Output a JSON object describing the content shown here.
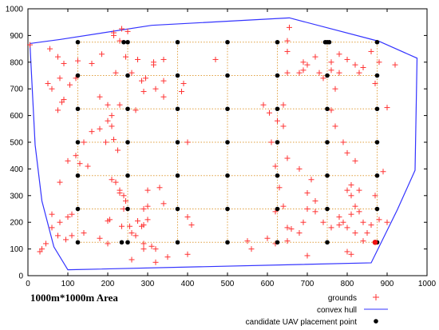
{
  "chart_data": {
    "type": "scatter",
    "xlabel": "1000m*1000m Area",
    "ylabel": "",
    "xlim": [
      0,
      1000
    ],
    "ylim": [
      0,
      1000
    ],
    "xticks": [
      "0",
      "100",
      "200",
      "300",
      "400",
      "500",
      "600",
      "700",
      "800",
      "900",
      "1000"
    ],
    "yticks": [
      "0",
      "100",
      "200",
      "300",
      "400",
      "500",
      "600",
      "700",
      "800",
      "900",
      "1000"
    ],
    "grid": false,
    "legend_position": "bottom-right",
    "colors": {
      "grounds": "#ff3333",
      "hull": "#3333ff",
      "candidates": "#000000",
      "highlight": "#ee1111",
      "grid_lines": "#e0a040"
    },
    "series": [
      {
        "name": "grounds",
        "marker": "plus",
        "points": [
          [
            5,
            865
          ],
          [
            55,
            850
          ],
          [
            75,
            820
          ],
          [
            80,
            740
          ],
          [
            50,
            720
          ],
          [
            90,
            795
          ],
          [
            60,
            700
          ],
          [
            90,
            660
          ],
          [
            85,
            650
          ],
          [
            75,
            620
          ],
          [
            120,
            740
          ],
          [
            105,
            715
          ],
          [
            125,
            805
          ],
          [
            160,
            795
          ],
          [
            185,
            830
          ],
          [
            215,
            900
          ],
          [
            215,
            910
          ],
          [
            235,
            925
          ],
          [
            250,
            915
          ],
          [
            230,
            880
          ],
          [
            245,
            820
          ],
          [
            275,
            810
          ],
          [
            260,
            760
          ],
          [
            220,
            760
          ],
          [
            285,
            730
          ],
          [
            295,
            740
          ],
          [
            315,
            800
          ],
          [
            315,
            790
          ],
          [
            340,
            810
          ],
          [
            340,
            730
          ],
          [
            340,
            670
          ],
          [
            320,
            700
          ],
          [
            290,
            690
          ],
          [
            270,
            620
          ],
          [
            230,
            640
          ],
          [
            180,
            670
          ],
          [
            200,
            640
          ],
          [
            180,
            550
          ],
          [
            210,
            600
          ],
          [
            200,
            580
          ],
          [
            160,
            540
          ],
          [
            140,
            500
          ],
          [
            120,
            450
          ],
          [
            100,
            430
          ],
          [
            130,
            420
          ],
          [
            150,
            410
          ],
          [
            210,
            560
          ],
          [
            215,
            510
          ],
          [
            195,
            500
          ],
          [
            225,
            470
          ],
          [
            210,
            360
          ],
          [
            220,
            350
          ],
          [
            230,
            310
          ],
          [
            240,
            300
          ],
          [
            230,
            320
          ],
          [
            245,
            280
          ],
          [
            240,
            250
          ],
          [
            205,
            210
          ],
          [
            200,
            205
          ],
          [
            235,
            185
          ],
          [
            255,
            185
          ],
          [
            275,
            205
          ],
          [
            300,
            210
          ],
          [
            290,
            190
          ],
          [
            285,
            185
          ],
          [
            260,
            160
          ],
          [
            270,
            150
          ],
          [
            290,
            120
          ],
          [
            290,
            100
          ],
          [
            310,
            110
          ],
          [
            320,
            100
          ],
          [
            290,
            250
          ],
          [
            300,
            260
          ],
          [
            300,
            320
          ],
          [
            330,
            330
          ],
          [
            340,
            270
          ],
          [
            400,
            220
          ],
          [
            410,
            190
          ],
          [
            400,
            500
          ],
          [
            390,
            720
          ],
          [
            385,
            690
          ],
          [
            470,
            810
          ],
          [
            590,
            640
          ],
          [
            605,
            610
          ],
          [
            610,
            500
          ],
          [
            625,
            580
          ],
          [
            640,
            560
          ],
          [
            650,
            440
          ],
          [
            620,
            410
          ],
          [
            630,
            330
          ],
          [
            640,
            260
          ],
          [
            620,
            240
          ],
          [
            650,
            180
          ],
          [
            660,
            175
          ],
          [
            680,
            160
          ],
          [
            690,
            200
          ],
          [
            700,
            250
          ],
          [
            720,
            280
          ],
          [
            710,
            360
          ],
          [
            700,
            310
          ],
          [
            680,
            400
          ],
          [
            640,
            640
          ],
          [
            650,
            760
          ],
          [
            650,
            840
          ],
          [
            650,
            880
          ],
          [
            655,
            930
          ],
          [
            680,
            760
          ],
          [
            690,
            770
          ],
          [
            700,
            790
          ],
          [
            690,
            800
          ],
          [
            720,
            820
          ],
          [
            730,
            760
          ],
          [
            740,
            740
          ],
          [
            760,
            800
          ],
          [
            760,
            770
          ],
          [
            780,
            760
          ],
          [
            770,
            700
          ],
          [
            760,
            620
          ],
          [
            770,
            560
          ],
          [
            790,
            500
          ],
          [
            800,
            460
          ],
          [
            820,
            430
          ],
          [
            810,
            340
          ],
          [
            800,
            320
          ],
          [
            810,
            300
          ],
          [
            830,
            320
          ],
          [
            820,
            260
          ],
          [
            830,
            240
          ],
          [
            810,
            230
          ],
          [
            780,
            220
          ],
          [
            790,
            200
          ],
          [
            800,
            180
          ],
          [
            840,
            200
          ],
          [
            820,
            160
          ],
          [
            860,
            190
          ],
          [
            850,
            160
          ],
          [
            840,
            130
          ],
          [
            800,
            90
          ],
          [
            810,
            80
          ],
          [
            700,
            75
          ],
          [
            650,
            130
          ],
          [
            780,
            830
          ],
          [
            800,
            810
          ],
          [
            820,
            790
          ],
          [
            840,
            780
          ],
          [
            830,
            760
          ],
          [
            870,
            720
          ],
          [
            860,
            840
          ],
          [
            880,
            800
          ],
          [
            920,
            790
          ],
          [
            900,
            630
          ],
          [
            890,
            390
          ],
          [
            870,
            300
          ],
          [
            880,
            210
          ],
          [
            900,
            200
          ],
          [
            780,
            190
          ],
          [
            760,
            180
          ],
          [
            740,
            200
          ],
          [
            720,
            240
          ],
          [
            600,
            140
          ],
          [
            620,
            120
          ],
          [
            550,
            130
          ],
          [
            560,
            100
          ],
          [
            400,
            80
          ],
          [
            350,
            70
          ],
          [
            320,
            50
          ],
          [
            260,
            60
          ],
          [
            200,
            120
          ],
          [
            180,
            140
          ],
          [
            140,
            160
          ],
          [
            110,
            150
          ],
          [
            95,
            135
          ],
          [
            110,
            230
          ],
          [
            80,
            200
          ],
          [
            75,
            150
          ],
          [
            60,
            180
          ],
          [
            45,
            120
          ],
          [
            35,
            100
          ],
          [
            30,
            90
          ],
          [
            60,
            230
          ],
          [
            80,
            350
          ],
          [
            100,
            220
          ]
        ]
      },
      {
        "name": "convex hull",
        "line": true,
        "points": [
          [
            5,
            870
          ],
          [
            80,
            885
          ],
          [
            310,
            938
          ],
          [
            655,
            966
          ],
          [
            880,
            878
          ],
          [
            975,
            815
          ],
          [
            970,
            395
          ],
          [
            925,
            245
          ],
          [
            860,
            48
          ],
          [
            100,
            22
          ],
          [
            65,
            108
          ],
          [
            35,
            280
          ],
          [
            18,
            490
          ],
          [
            5,
            870
          ]
        ]
      },
      {
        "name": "candidate UAV placement point",
        "marker": "dot",
        "x": [
          125,
          250,
          375,
          500,
          625,
          750,
          875
        ],
        "y": [
          125,
          250,
          375,
          500,
          625,
          750,
          875
        ],
        "extra_points": [
          [
            235,
            125
          ],
          [
            240,
            875
          ],
          [
            745,
            875
          ],
          [
            755,
            875
          ]
        ]
      }
    ],
    "highlight_point": [
      870,
      125
    ]
  }
}
